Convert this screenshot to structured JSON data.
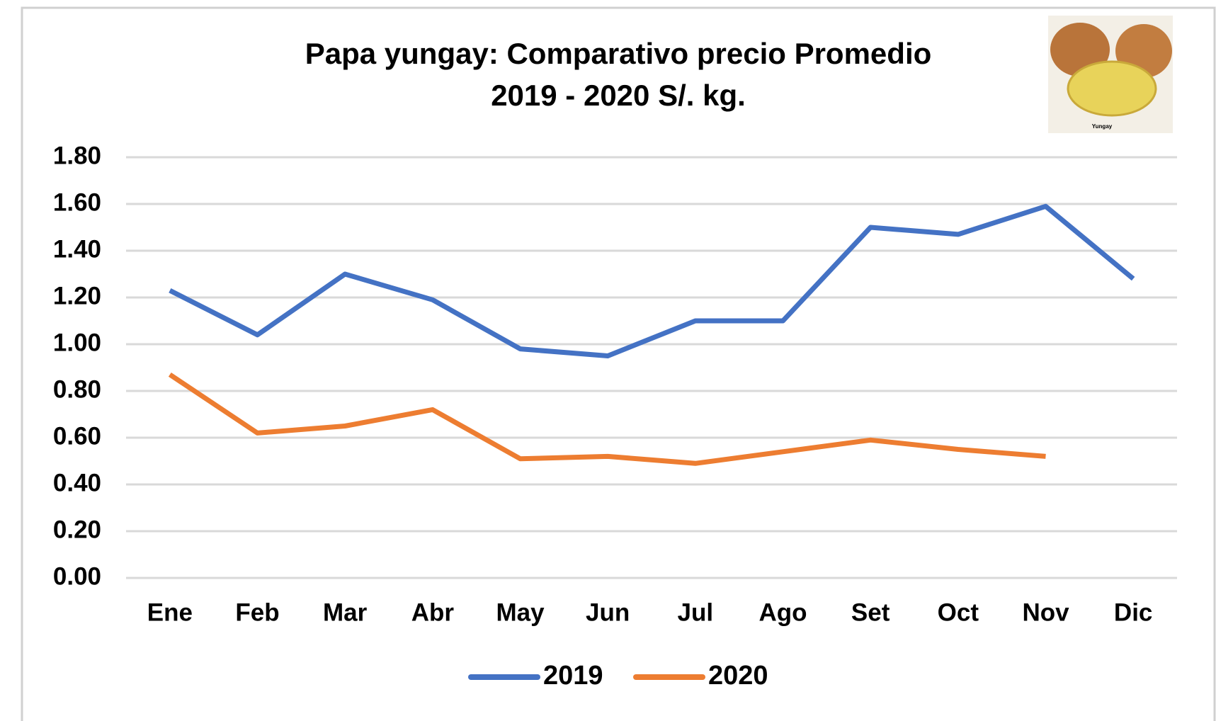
{
  "chart_data": {
    "type": "line",
    "title": [
      "Papa yungay: Comparativo precio Promedio",
      "2019 - 2020 S/. kg."
    ],
    "image_caption": "Yungay",
    "categories": [
      "Ene",
      "Feb",
      "Mar",
      "Abr",
      "May",
      "Jun",
      "Jul",
      "Ago",
      "Set",
      "Oct",
      "Nov",
      "Dic"
    ],
    "series": [
      {
        "name": "2019",
        "color": "#4472c4",
        "values": [
          1.23,
          1.04,
          1.3,
          1.19,
          0.98,
          0.95,
          1.1,
          1.1,
          1.5,
          1.47,
          1.59,
          1.28
        ]
      },
      {
        "name": "2020",
        "color": "#ed7d31",
        "values": [
          0.87,
          0.62,
          0.65,
          0.72,
          0.51,
          0.52,
          0.49,
          0.54,
          0.59,
          0.55,
          0.52,
          null
        ]
      }
    ],
    "ylim": [
      0,
      1.8
    ],
    "yticks": [
      {
        "value": 0,
        "label": "0.00"
      },
      {
        "value": 0.2,
        "label": "0.20"
      },
      {
        "value": 0.4,
        "label": "0.40"
      },
      {
        "value": 0.6,
        "label": "0.60"
      },
      {
        "value": 0.8,
        "label": "0.80"
      },
      {
        "value": 1,
        "label": "1.00"
      },
      {
        "value": 1.2,
        "label": "1.20"
      },
      {
        "value": 1.4,
        "label": "1.40"
      },
      {
        "value": 1.6,
        "label": "1.60"
      },
      {
        "value": 1.8,
        "label": "1.80"
      }
    ],
    "grid": true,
    "legend": "bottom"
  }
}
